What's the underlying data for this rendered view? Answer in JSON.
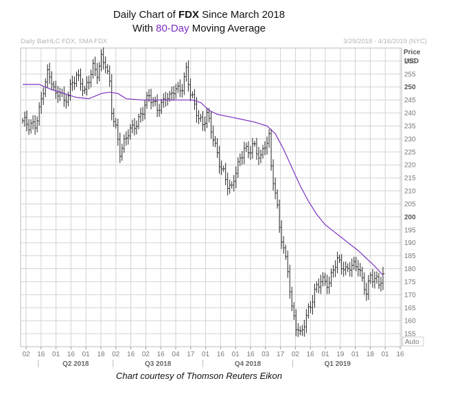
{
  "title": {
    "line1_prefix": "Daily Chart of ",
    "line1_bold": "FDX",
    "line1_suffix": " Since March 2018",
    "line2_prefix": "With ",
    "line2_accent": "80-Day",
    "line2_suffix": " Moving Average"
  },
  "header": {
    "left": "Daily BarHLC FDX, SMA FDX",
    "right": "3/29/2018 - 4/16/2019 (NYC)"
  },
  "axis": {
    "price_label": "Price",
    "currency_label": "USD",
    "auto_label": "Auto"
  },
  "credit": "Chart courtesy of Thomson Reuters Eikon",
  "colors": {
    "bars": "#222222",
    "sma": "#7b2fbf",
    "grid": "#d2d2d2",
    "accent": "#7b2fbf"
  },
  "chart_data": {
    "type": "line",
    "subtype": "daily HLC bar chart with 80-day simple moving average",
    "ylim": [
      150,
      265
    ],
    "y_ticks": [
      155,
      160,
      165,
      170,
      175,
      180,
      185,
      190,
      195,
      200,
      205,
      210,
      215,
      220,
      225,
      230,
      235,
      240,
      245,
      250,
      255,
      260
    ],
    "y_ticks_bold": [
      200,
      250
    ],
    "x_tick_labels": [
      "02",
      "16",
      "01",
      "16",
      "01",
      "18",
      "02",
      "16",
      "02",
      "16",
      "04",
      "17",
      "01",
      "16",
      "01",
      "16",
      "03",
      "17",
      "02",
      "16",
      "01",
      "19",
      "01",
      "18",
      "01",
      "16"
    ],
    "quarter_labels": [
      "Q2 2018",
      "Q3 2018",
      "Q4 2018",
      "Q1 2019"
    ],
    "grid": true,
    "series": [
      {
        "name": "FDX",
        "kind": "hlc-bars",
        "close_path": [
          [
            0,
            237
          ],
          [
            3,
            234
          ],
          [
            6,
            236
          ],
          [
            8,
            242
          ],
          [
            10,
            249
          ],
          [
            12,
            254
          ],
          [
            14,
            252
          ],
          [
            16,
            247
          ],
          [
            18,
            250
          ],
          [
            20,
            244
          ],
          [
            22,
            246
          ],
          [
            24,
            251
          ],
          [
            26,
            255
          ],
          [
            28,
            253
          ],
          [
            30,
            248
          ],
          [
            32,
            252
          ],
          [
            34,
            257
          ],
          [
            36,
            256
          ],
          [
            38,
            262
          ],
          [
            40,
            259
          ],
          [
            42,
            250
          ],
          [
            43,
            240
          ],
          [
            45,
            234
          ],
          [
            47,
            226
          ],
          [
            49,
            229
          ],
          [
            51,
            232
          ],
          [
            53,
            233
          ],
          [
            55,
            236
          ],
          [
            57,
            240
          ],
          [
            59,
            244
          ],
          [
            61,
            246
          ],
          [
            63,
            243
          ],
          [
            65,
            242
          ],
          [
            67,
            244
          ],
          [
            69,
            247
          ],
          [
            71,
            245
          ],
          [
            73,
            248
          ],
          [
            75,
            249
          ],
          [
            77,
            251
          ],
          [
            79,
            257
          ],
          [
            81,
            247
          ],
          [
            83,
            242
          ],
          [
            85,
            238
          ],
          [
            87,
            237
          ],
          [
            89,
            240
          ],
          [
            91,
            233
          ],
          [
            93,
            226
          ],
          [
            95,
            221
          ],
          [
            97,
            218
          ],
          [
            99,
            213
          ],
          [
            101,
            210
          ],
          [
            103,
            217
          ],
          [
            105,
            222
          ],
          [
            107,
            228
          ],
          [
            109,
            225
          ],
          [
            111,
            227
          ],
          [
            113,
            224
          ],
          [
            115,
            223
          ],
          [
            117,
            229
          ],
          [
            119,
            231
          ],
          [
            120,
            219
          ],
          [
            122,
            208
          ],
          [
            124,
            196
          ],
          [
            126,
            188
          ],
          [
            128,
            181
          ],
          [
            130,
            164
          ],
          [
            132,
            157
          ],
          [
            134,
            154
          ],
          [
            136,
            160
          ],
          [
            138,
            165
          ],
          [
            140,
            168
          ],
          [
            142,
            172
          ],
          [
            144,
            175
          ],
          [
            146,
            176
          ],
          [
            148,
            175
          ],
          [
            150,
            180
          ],
          [
            152,
            182
          ],
          [
            154,
            181
          ],
          [
            156,
            180
          ],
          [
            158,
            182
          ],
          [
            160,
            181
          ],
          [
            162,
            180
          ],
          [
            164,
            175
          ],
          [
            166,
            172
          ],
          [
            168,
            178
          ],
          [
            170,
            176
          ],
          [
            172,
            173
          ],
          [
            174,
            177
          ]
        ],
        "n_sessions": 175
      },
      {
        "name": "SMA FDX",
        "kind": "line",
        "points": [
          [
            0,
            251
          ],
          [
            8,
            251
          ],
          [
            14,
            249
          ],
          [
            20,
            247.5
          ],
          [
            26,
            246
          ],
          [
            32,
            245.5
          ],
          [
            38,
            247.5
          ],
          [
            42,
            248
          ],
          [
            46,
            247.5
          ],
          [
            50,
            245.5
          ],
          [
            58,
            245
          ],
          [
            66,
            245
          ],
          [
            74,
            245
          ],
          [
            82,
            245
          ],
          [
            86,
            244
          ],
          [
            90,
            241
          ],
          [
            94,
            239.5
          ],
          [
            100,
            238.5
          ],
          [
            106,
            237.5
          ],
          [
            112,
            236.5
          ],
          [
            118,
            235
          ],
          [
            122,
            232
          ],
          [
            126,
            226
          ],
          [
            130,
            219
          ],
          [
            134,
            212
          ],
          [
            138,
            206
          ],
          [
            142,
            201
          ],
          [
            146,
            197
          ],
          [
            150,
            194.5
          ],
          [
            154,
            192
          ],
          [
            158,
            189.5
          ],
          [
            162,
            187
          ],
          [
            166,
            184
          ],
          [
            170,
            181
          ],
          [
            174,
            177.5
          ]
        ]
      }
    ]
  }
}
